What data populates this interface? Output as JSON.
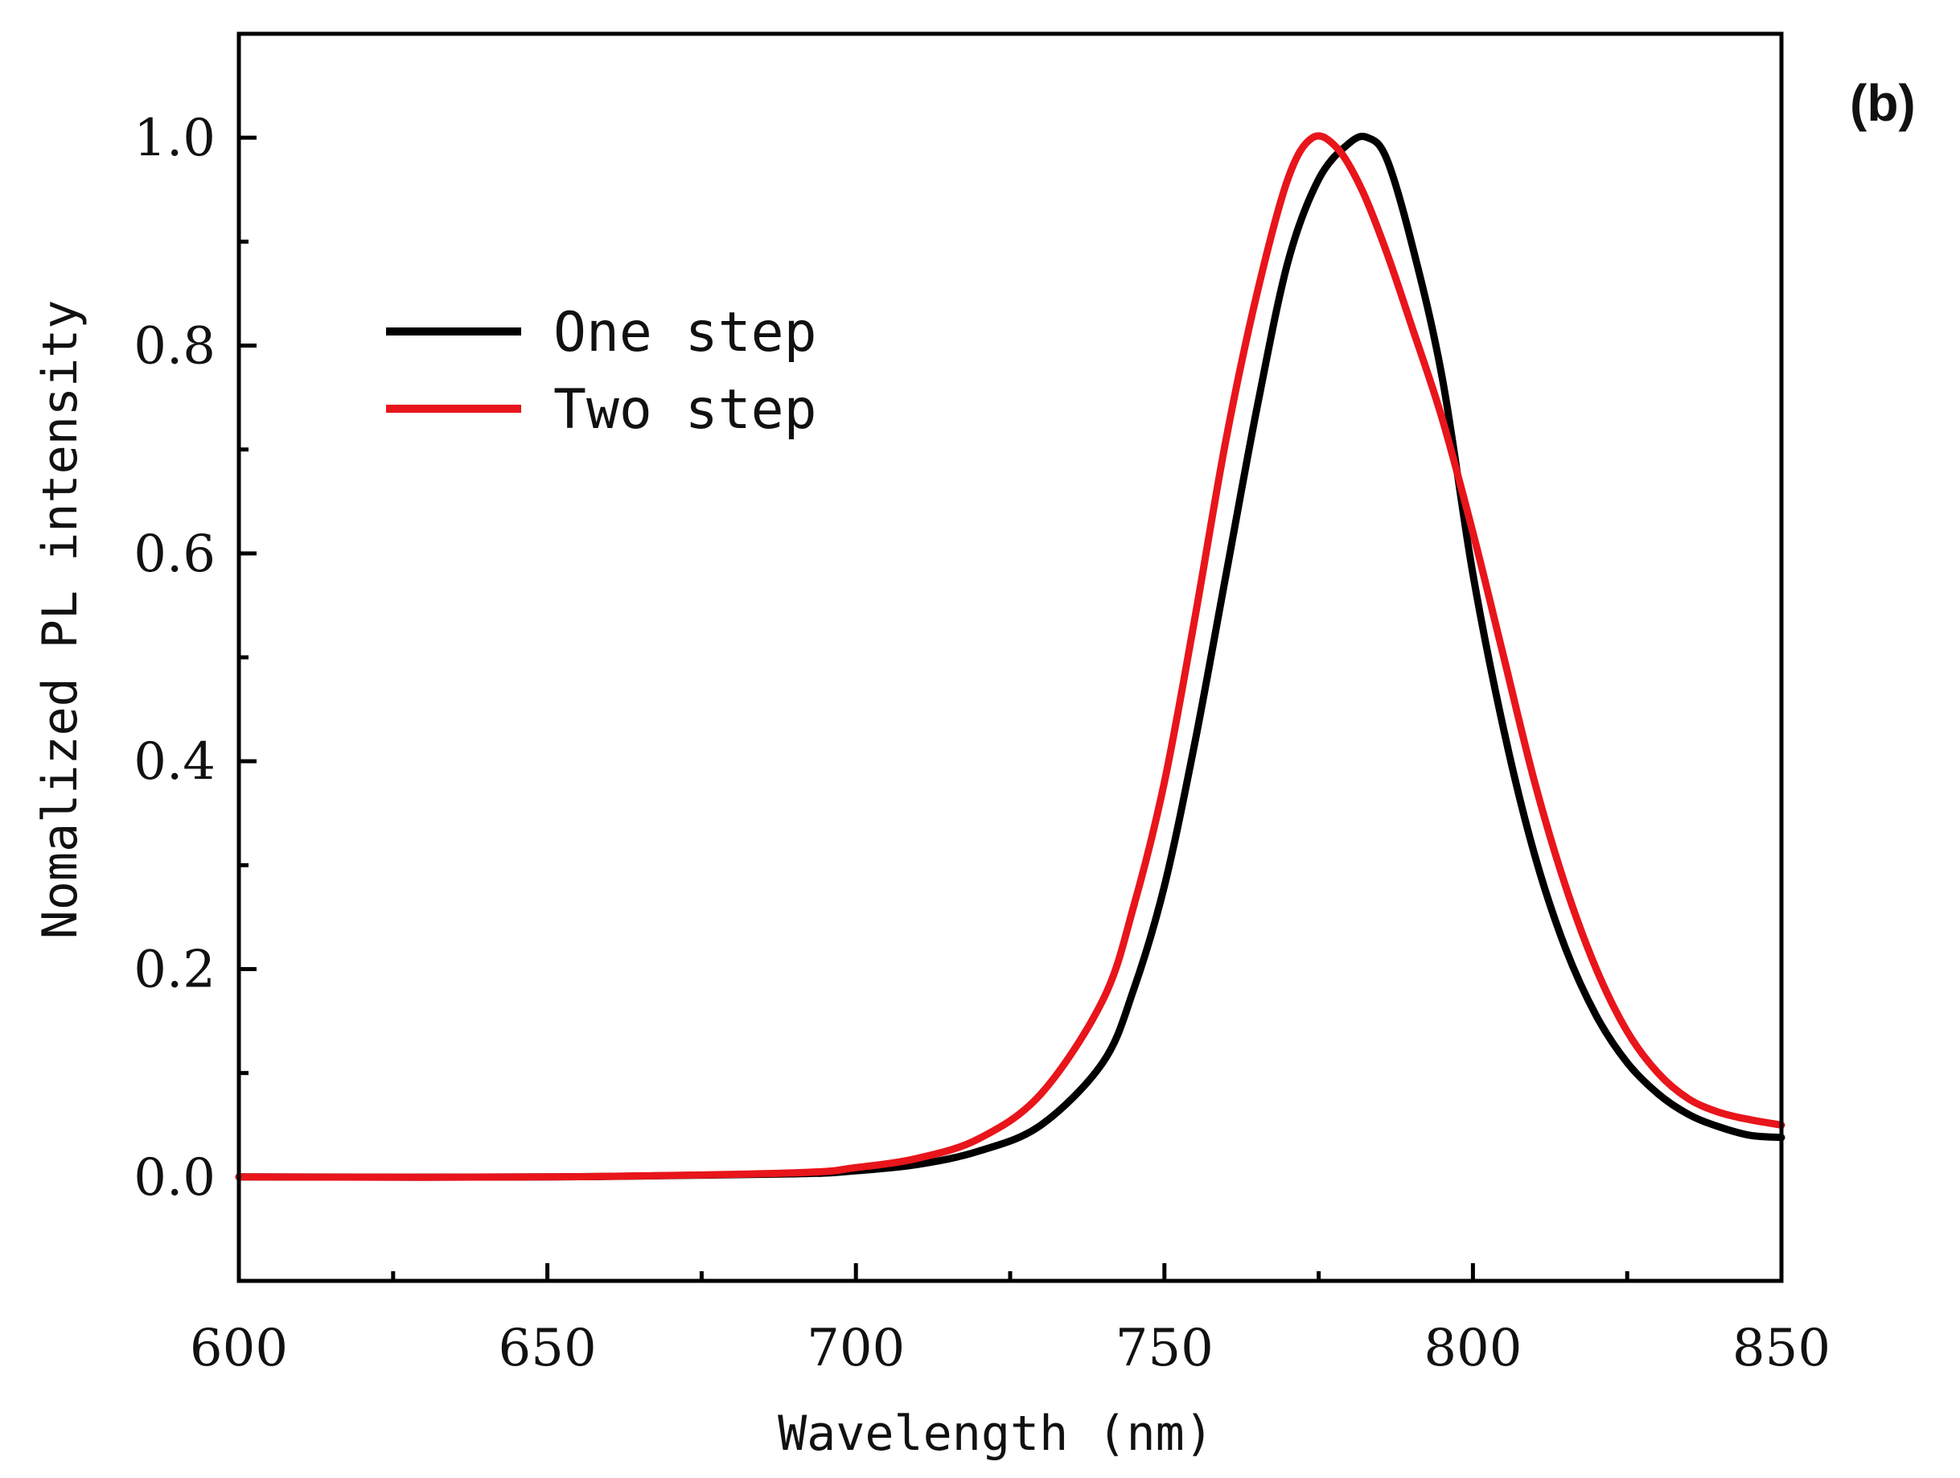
{
  "chart_data": {
    "type": "line",
    "panel_label": "(b)",
    "xlabel": "Wavelength (nm)",
    "ylabel": "Nomalized PL intensity",
    "xlim": [
      600,
      850
    ],
    "ylim": [
      -0.1,
      1.1
    ],
    "xticks": [
      600,
      650,
      700,
      750,
      800,
      850
    ],
    "xtick_labels": [
      "600",
      "650",
      "700",
      "750",
      "800",
      "850"
    ],
    "yticks": [
      0.0,
      0.2,
      0.4,
      0.6,
      0.8,
      1.0
    ],
    "ytick_labels": [
      "0.0",
      "0.2",
      "0.4",
      "0.6",
      "0.8",
      "1.0"
    ],
    "legend_position": "upper-left",
    "series": [
      {
        "name": "One step",
        "color": "#000000",
        "x": [
          600,
          650,
          690,
          700,
          710,
          720,
          730,
          740,
          745,
          750,
          755,
          760,
          765,
          770,
          775,
          780,
          783,
          786,
          790,
          795,
          800,
          805,
          810,
          815,
          820,
          825,
          830,
          835,
          840,
          845,
          850
        ],
        "y": [
          0.0,
          0.0,
          0.003,
          0.006,
          0.012,
          0.025,
          0.05,
          0.11,
          0.18,
          0.28,
          0.42,
          0.58,
          0.74,
          0.88,
          0.96,
          0.995,
          1.0,
          0.98,
          0.9,
          0.77,
          0.58,
          0.43,
          0.31,
          0.22,
          0.155,
          0.11,
          0.08,
          0.06,
          0.048,
          0.04,
          0.038
        ]
      },
      {
        "name": "Two step",
        "color": "#e8151b",
        "x": [
          600,
          650,
          690,
          700,
          710,
          720,
          730,
          740,
          745,
          750,
          755,
          760,
          765,
          770,
          774,
          778,
          782,
          786,
          790,
          795,
          800,
          805,
          810,
          815,
          820,
          825,
          830,
          835,
          840,
          845,
          850
        ],
        "y": [
          0.0,
          0.0,
          0.004,
          0.009,
          0.018,
          0.037,
          0.08,
          0.17,
          0.26,
          0.38,
          0.54,
          0.71,
          0.85,
          0.96,
          1.0,
          0.99,
          0.95,
          0.89,
          0.82,
          0.73,
          0.62,
          0.5,
          0.38,
          0.28,
          0.2,
          0.14,
          0.1,
          0.075,
          0.062,
          0.055,
          0.05
        ]
      }
    ]
  }
}
